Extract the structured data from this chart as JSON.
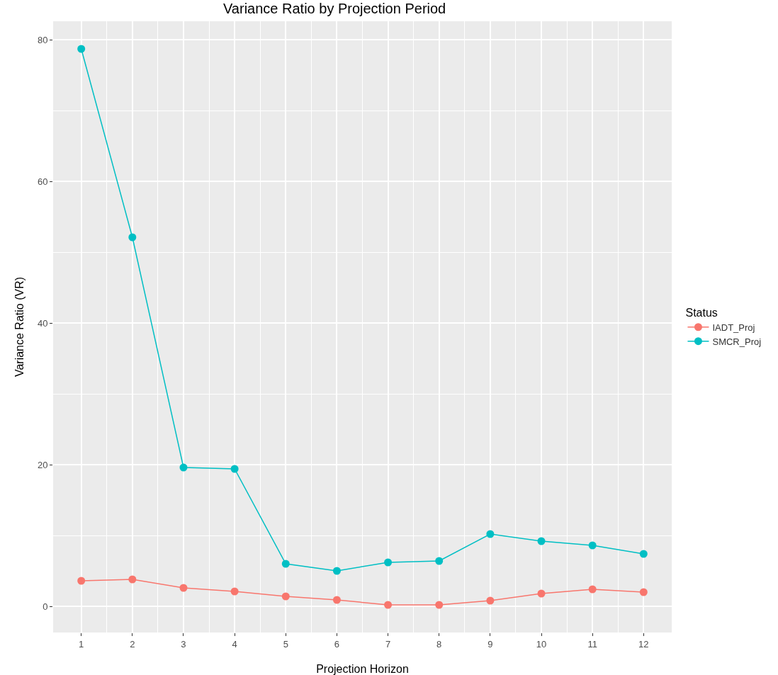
{
  "chart_data": {
    "type": "line",
    "title": "Variance Ratio by Projection Period",
    "xlabel": "Projection Horizon",
    "ylabel": "Variance Ratio (VR)",
    "legend_title": "Status",
    "x": [
      1,
      2,
      3,
      4,
      5,
      6,
      7,
      8,
      9,
      10,
      11,
      12
    ],
    "series": [
      {
        "name": "IADT_Proj",
        "color": "#f8766d",
        "values": [
          3.6,
          3.8,
          2.6,
          2.1,
          1.4,
          0.9,
          0.2,
          0.2,
          0.8,
          1.8,
          2.4,
          2.0
        ]
      },
      {
        "name": "SMCR_Proj",
        "color": "#00bfc4",
        "values": [
          78.7,
          52.1,
          19.6,
          19.4,
          6.0,
          5.0,
          6.2,
          6.4,
          10.2,
          9.2,
          8.6,
          7.4
        ]
      }
    ],
    "xlim": [
      0.45,
      12.55
    ],
    "xticks": [
      1,
      2,
      3,
      4,
      5,
      6,
      7,
      8,
      9,
      10,
      11,
      12
    ],
    "ylim": [
      -3.7,
      82.6
    ],
    "yticks": [
      0,
      20,
      40,
      60,
      80
    ],
    "grid": true,
    "legend": "right",
    "marker": "circle",
    "line_style": "solid"
  }
}
